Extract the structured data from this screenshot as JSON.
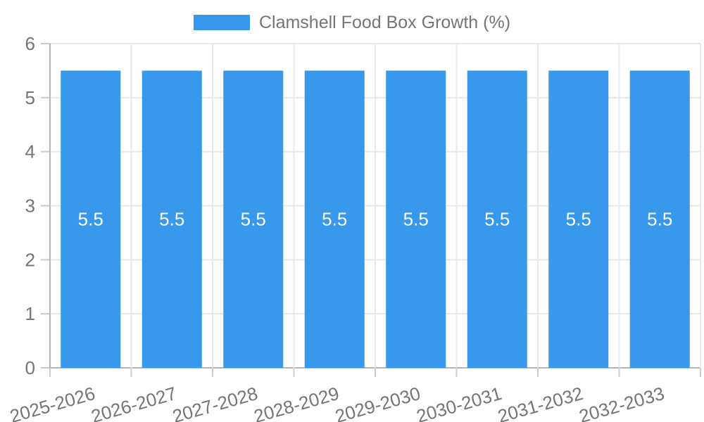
{
  "legend": {
    "label": "Clamshell Food Box Growth (%)"
  },
  "chart_data": {
    "type": "bar",
    "title": "Clamshell Food Box Growth (%)",
    "categories": [
      "2025-2026",
      "2026-2027",
      "2027-2028",
      "2028-2029",
      "2029-2030",
      "2030-2031",
      "2031-2032",
      "2032-2033"
    ],
    "values": [
      5.5,
      5.5,
      5.5,
      5.5,
      5.5,
      5.5,
      5.5,
      5.5
    ],
    "bar_labels": [
      "5.5",
      "5.5",
      "5.5",
      "5.5",
      "5.5",
      "5.5",
      "5.5",
      "5.5"
    ],
    "xlabel": "",
    "ylabel": "",
    "ylim": [
      0,
      6
    ],
    "yticks": [
      0,
      1,
      2,
      3,
      4,
      5,
      6
    ],
    "grid": true,
    "legend_position": "top",
    "colors": {
      "bar": "#3898EC",
      "grid": "#e8e8e8",
      "axis": "#b5b5b5",
      "tick_mark": "#cccccc",
      "tick_text": "#757575",
      "bar_label": "#ffffff"
    }
  }
}
